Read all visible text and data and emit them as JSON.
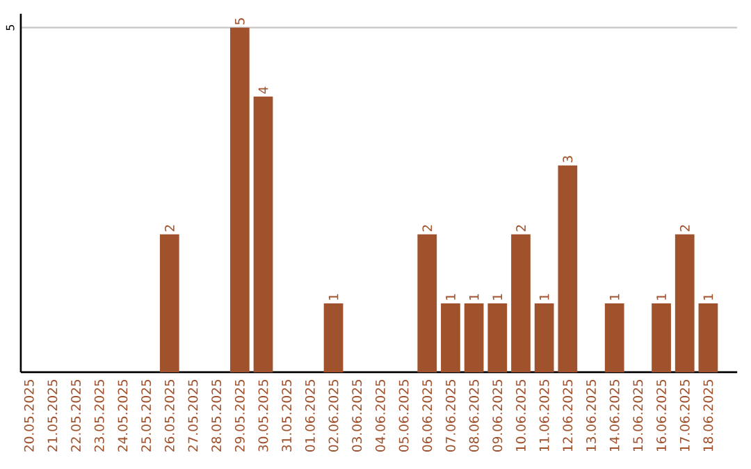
{
  "chart_data": {
    "type": "bar",
    "categories": [
      "20.05.2025",
      "21.05.2025",
      "22.05.2025",
      "23.05.2025",
      "24.05.2025",
      "25.05.2025",
      "26.05.2025",
      "27.05.2025",
      "28.05.2025",
      "29.05.2025",
      "30.05.2025",
      "31.05.2025",
      "01.06.2025",
      "02.06.2025",
      "03.06.2025",
      "04.06.2025",
      "05.06.2025",
      "06.06.2025",
      "07.06.2025",
      "08.06.2025",
      "09.06.2025",
      "10.06.2025",
      "11.06.2025",
      "12.06.2025",
      "13.06.2025",
      "14.06.2025",
      "15.06.2025",
      "16.06.2025",
      "17.06.2025",
      "18.06.2025"
    ],
    "values": [
      0,
      0,
      0,
      0,
      0,
      0,
      2,
      0,
      0,
      5,
      4,
      0,
      0,
      1,
      0,
      0,
      0,
      2,
      1,
      1,
      1,
      2,
      1,
      3,
      0,
      1,
      0,
      1,
      2,
      1
    ],
    "value_labels": [
      null,
      null,
      null,
      null,
      null,
      null,
      "2",
      null,
      null,
      "5",
      "4",
      null,
      null,
      "1",
      null,
      null,
      null,
      "2",
      "1",
      "1",
      "1",
      "2",
      "1",
      "3",
      null,
      "1",
      null,
      "1",
      "2",
      "1"
    ],
    "color": "#a0522d",
    "ylim": [
      0,
      5.2
    ],
    "yticks": [
      5
    ],
    "grid": "y"
  }
}
